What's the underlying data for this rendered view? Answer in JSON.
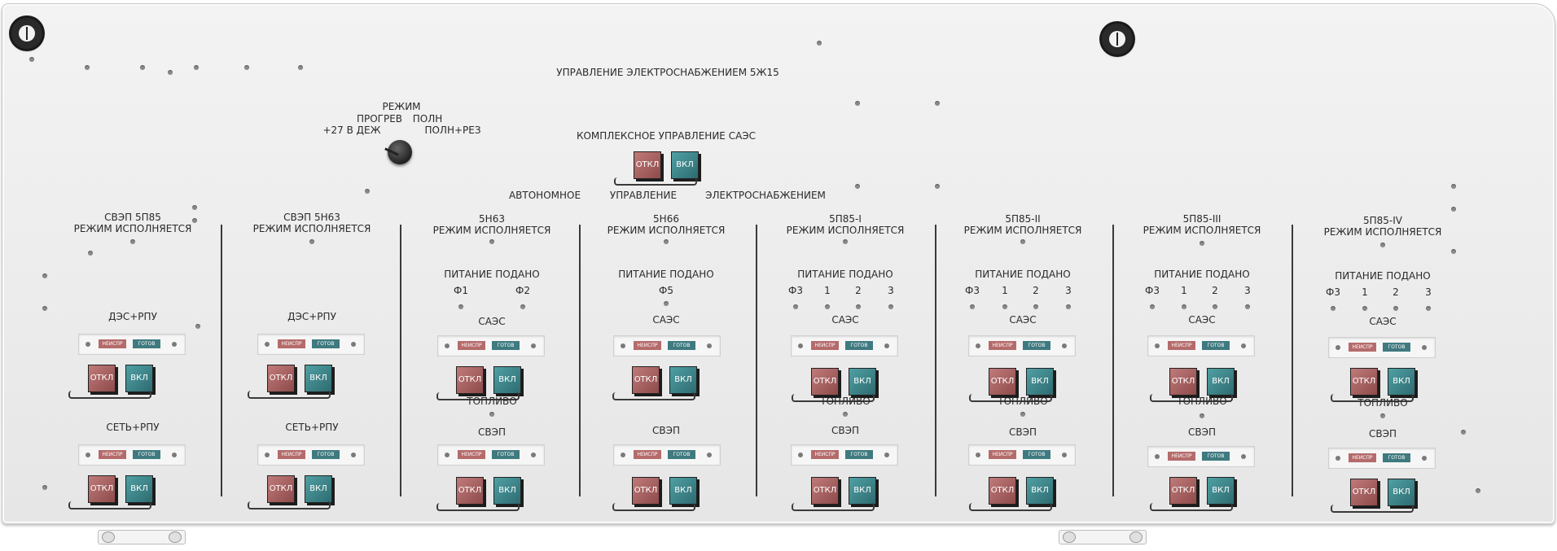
{
  "panel": {
    "title": "УПРАВЛЕНИЕ ЭЛЕКТРОСНАБЖЕНИЕМ 5Ж15",
    "mode_selector": {
      "caption": "РЕЖИМ",
      "positions": [
        "ПРОГРЕВ",
        "ПОЛН",
        "+27 В ДЕЖ",
        "ПОЛН+РЕЗ"
      ]
    },
    "complex": {
      "caption": "КОМПЛЕКСНОЕ УПРАВЛЕНИЕ САЭС",
      "off": "ОТКЛ",
      "on": "ВКЛ",
      "under_left": "АВТОНОМНОЕ",
      "under_mid": "УПРАВЛЕНИЕ",
      "under_right": "ЭЛЕКТРОСНАБЖЕНИЕМ"
    },
    "lamps": {
      "fault": "НЕИСПР",
      "ready": "ГОТОВ"
    },
    "buttons": {
      "off": "ОТКЛ",
      "on": "ВКЛ"
    },
    "sections": [
      {
        "name": "СВЭП 5П85",
        "status": "РЕЖИМ ИСПОЛНЯЕТСЯ",
        "group1": "ДЭС+РПУ",
        "group2": "СЕТЬ+РПУ"
      },
      {
        "name": "СВЭП 5Н63",
        "status": "РЕЖИМ ИСПОЛНЯЕТСЯ",
        "group1": "ДЭС+РПУ",
        "group2": "СЕТЬ+РПУ"
      },
      {
        "name": "5Н63",
        "status": "РЕЖИМ ИСПОЛНЯЕТСЯ",
        "power": "ПИТАНИЕ ПОДАНО",
        "phases": [
          "Ф1",
          "Ф2"
        ],
        "group1": "САЭС",
        "fuel": "ТОПЛИВО",
        "group2": "СВЭП"
      },
      {
        "name": "5Н66",
        "status": "РЕЖИМ ИСПОЛНЯЕТСЯ",
        "power": "ПИТАНИЕ ПОДАНО",
        "phases": [
          "Ф5"
        ],
        "group1": "САЭС",
        "group2": "СВЭП"
      },
      {
        "name": "5П85-I",
        "status": "РЕЖИМ ИСПОЛНЯЕТСЯ",
        "power": "ПИТАНИЕ ПОДАНО",
        "phases": [
          "Ф3",
          "1",
          "2",
          "3"
        ],
        "group1": "САЭС",
        "fuel": "ТОПЛИВО",
        "group2": "СВЭП"
      },
      {
        "name": "5П85-II",
        "status": "РЕЖИМ ИСПОЛНЯЕТСЯ",
        "power": "ПИТАНИЕ ПОДАНО",
        "phases": [
          "Ф3",
          "1",
          "2",
          "3"
        ],
        "group1": "САЭС",
        "fuel": "ТОПЛИВО",
        "group2": "СВЭП"
      },
      {
        "name": "5П85-III",
        "status": "РЕЖИМ ИСПОЛНЯЕТСЯ",
        "power": "ПИТАНИЕ ПОДАНО",
        "phases": [
          "Ф3",
          "1",
          "2",
          "3"
        ],
        "group1": "САЭС",
        "fuel": "ТОПЛИВО",
        "group2": "СВЭП"
      },
      {
        "name": "5П85-IV",
        "status": "РЕЖИМ ИСПОЛНЯЕТСЯ",
        "power": "ПИТАНИЕ ПОДАНО",
        "phases": [
          "Ф3",
          "1",
          "2",
          "3"
        ],
        "group1": "САЭС",
        "fuel": "ТОПЛИВО",
        "group2": "СВЭП"
      }
    ]
  }
}
